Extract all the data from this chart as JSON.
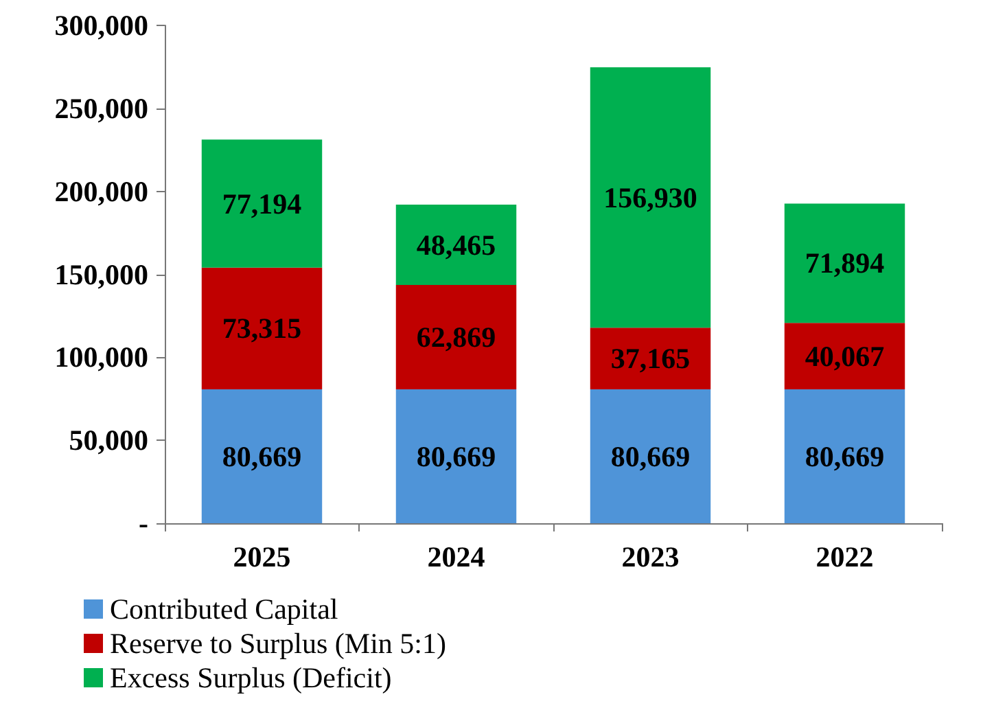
{
  "chart_data": {
    "type": "bar",
    "stacked": true,
    "categories": [
      "2025",
      "2024",
      "2023",
      "2022"
    ],
    "series": [
      {
        "name": "Contributed Capital",
        "color": "#4f94d8",
        "values": [
          80669,
          80669,
          80669,
          80669
        ],
        "value_labels": [
          "80,669",
          "80,669",
          "80,669",
          "80,669"
        ]
      },
      {
        "name": "Reserve to Surplus (Min 5:1)",
        "color": "#c00000",
        "values": [
          73315,
          62869,
          37165,
          40067
        ],
        "value_labels": [
          "73,315",
          "62,869",
          "37,165",
          "40,067"
        ]
      },
      {
        "name": "Excess Surplus (Deficit)",
        "color": "#00b050",
        "values": [
          77194,
          48465,
          156930,
          71894
        ],
        "value_labels": [
          "77,194",
          "48,465",
          "156,930",
          "71,894"
        ]
      }
    ],
    "ylim": [
      0,
      300000
    ],
    "yticks": [
      {
        "value": 0,
        "label": "-"
      },
      {
        "value": 50000,
        "label": "50,000"
      },
      {
        "value": 100000,
        "label": "100,000"
      },
      {
        "value": 150000,
        "label": "150,000"
      },
      {
        "value": 200000,
        "label": "200,000"
      },
      {
        "value": 250000,
        "label": "250,000"
      },
      {
        "value": 300000,
        "label": "300,000"
      }
    ],
    "grid": false,
    "legend": "bottom left"
  }
}
